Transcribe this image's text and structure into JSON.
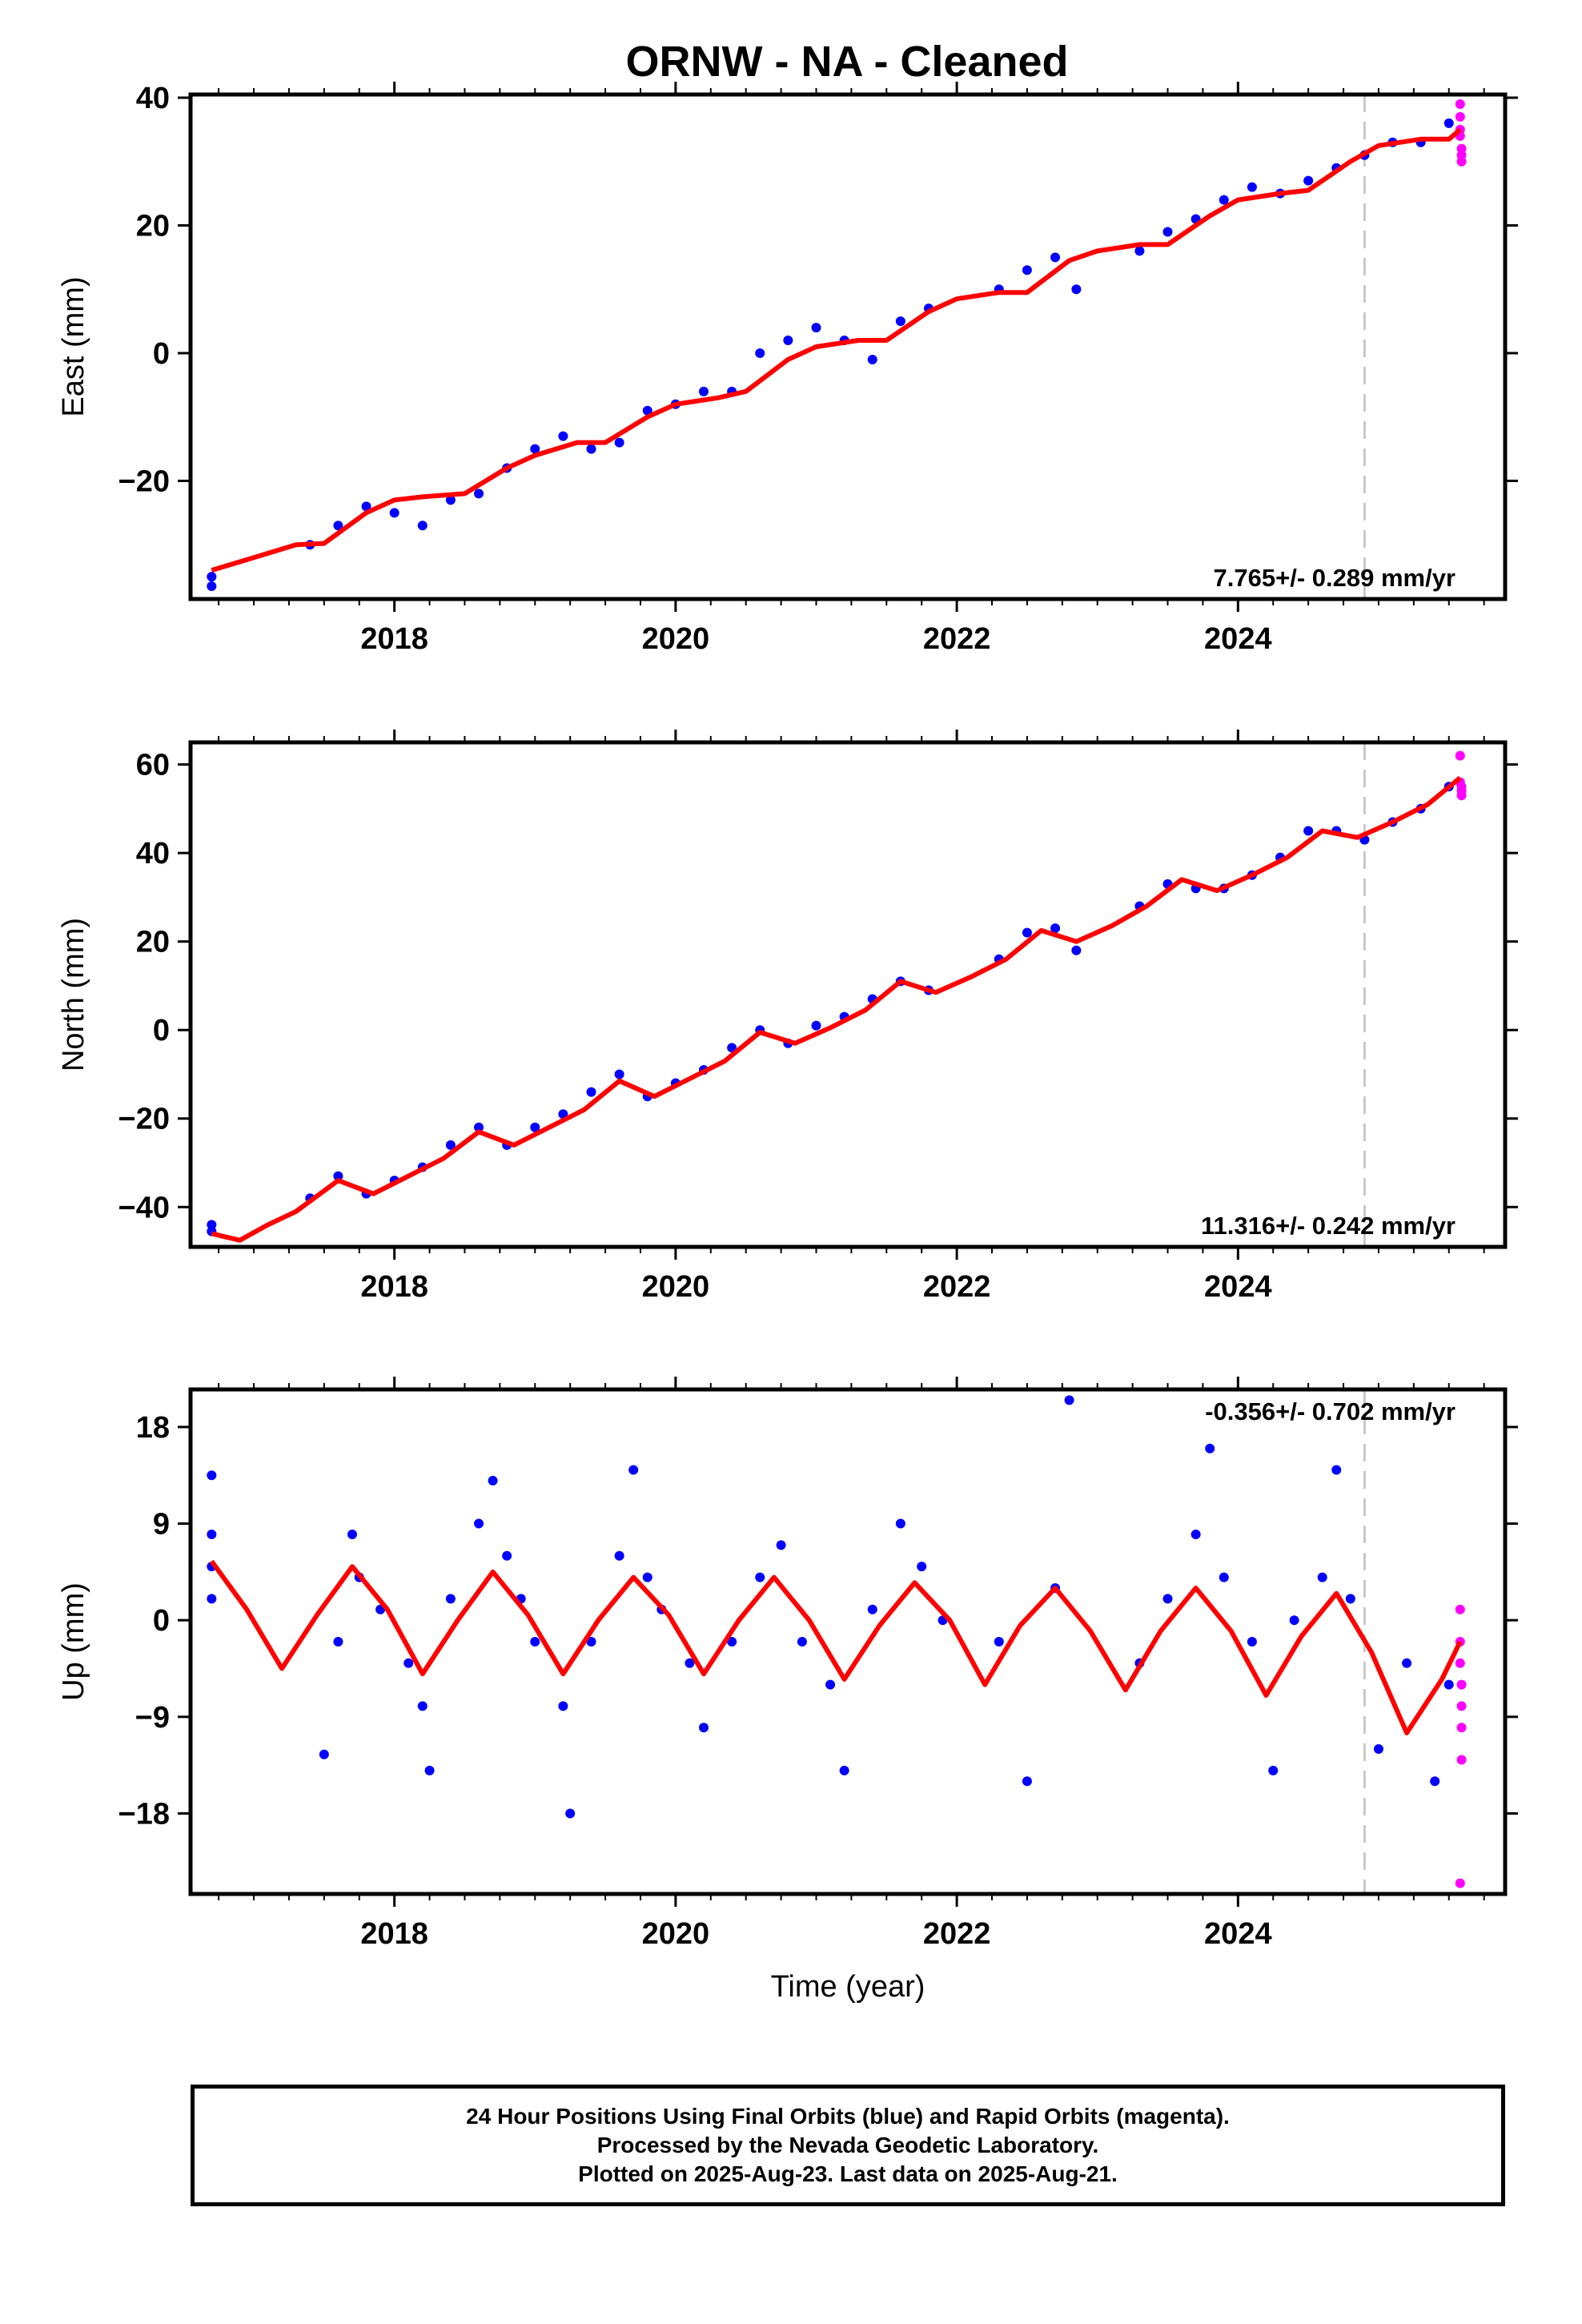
{
  "title": "ORNW  - NA - Cleaned",
  "colors": {
    "final": "#0000ff",
    "rapid": "#ff00ff",
    "model": "#ff0000",
    "cutoff": "#c8c8c8"
  },
  "caption": {
    "line1": "24 Hour Positions Using Final Orbits (blue) and Rapid Orbits (magenta).",
    "line2": "Processed by the Nevada Geodetic Laboratory.",
    "line3": "Plotted on 2025-Aug-23. Last data on 2025-Aug-21."
  },
  "chart_data": [
    {
      "type": "scatter",
      "panel": "east",
      "ylabel": "East (mm)",
      "xlabel": "",
      "xlim": [
        2016.55,
        2025.9
      ],
      "ylim": [
        -38.5,
        40.5
      ],
      "xticks": [
        2018,
        2020,
        2022,
        2024
      ],
      "yticks": [
        -20,
        0,
        20,
        40
      ],
      "rate_label": "7.765+/- 0.289 mm/yr",
      "rate_position": "bottom-right",
      "cutoff_year": 2024.9,
      "series": [
        {
          "kind": "points",
          "x": [
            2016.7,
            2016.7,
            2017.4,
            2017.6,
            2017.8,
            2018.0,
            2018.2,
            2018.4,
            2018.6,
            2018.8,
            2019.0,
            2019.2,
            2019.4,
            2019.6,
            2019.8,
            2020.0,
            2020.2,
            2020.4,
            2020.6,
            2020.8,
            2021.0,
            2021.2,
            2021.4,
            2021.6,
            2021.8,
            2022.3,
            2022.5,
            2022.7,
            2022.85,
            2023.3,
            2023.5,
            2023.7,
            2023.9,
            2024.1,
            2024.3,
            2024.5,
            2024.7,
            2024.9,
            2025.1,
            2025.3,
            2025.5
          ],
          "y": [
            -36.5,
            -35.0,
            -30.0,
            -27.0,
            -24.0,
            -25.0,
            -27.0,
            -23.0,
            -22.0,
            -18.0,
            -15.0,
            -13.0,
            -15.0,
            -14.0,
            -9.0,
            -8.0,
            -6.0,
            -6.0,
            0.0,
            2.0,
            4.0,
            2.0,
            -1.0,
            5.0,
            7.0,
            10.0,
            13.0,
            15.0,
            10.0,
            16.0,
            19.0,
            21.0,
            24.0,
            26.0,
            25.0,
            27.0,
            29.0,
            31.0,
            33.0,
            33.0,
            36.0
          ]
        },
        {
          "kind": "rapid",
          "x": [
            2025.58,
            2025.58,
            2025.58,
            2025.58,
            2025.59,
            2025.59,
            2025.59
          ],
          "y": [
            39.0,
            37.0,
            35.0,
            34.0,
            32.0,
            31.0,
            30.0
          ]
        },
        {
          "kind": "model",
          "x": [
            2016.7,
            2017.0,
            2017.3,
            2017.5,
            2017.8,
            2018.0,
            2018.2,
            2018.5,
            2018.8,
            2019.0,
            2019.3,
            2019.5,
            2019.8,
            2020.0,
            2020.3,
            2020.5,
            2020.8,
            2021.0,
            2021.3,
            2021.5,
            2021.8,
            2022.0,
            2022.3,
            2022.5,
            2022.8,
            2023.0,
            2023.3,
            2023.5,
            2023.8,
            2024.0,
            2024.3,
            2024.5,
            2024.8,
            2025.0,
            2025.3,
            2025.5,
            2025.58
          ],
          "y": [
            -34.0,
            -32.0,
            -30.0,
            -29.8,
            -25.0,
            -23.0,
            -22.5,
            -22.0,
            -18.0,
            -16.0,
            -14.0,
            -14.0,
            -10.0,
            -8.0,
            -7.0,
            -6.0,
            -1.0,
            1.0,
            2.0,
            2.0,
            6.5,
            8.5,
            9.5,
            9.5,
            14.5,
            16.0,
            17.0,
            17.0,
            21.5,
            24.0,
            25.0,
            25.5,
            30.0,
            32.5,
            33.5,
            33.5,
            35.0
          ]
        }
      ]
    },
    {
      "type": "scatter",
      "panel": "north",
      "ylabel": "North (mm)",
      "xlabel": "",
      "xlim": [
        2016.55,
        2025.9
      ],
      "ylim": [
        -49,
        65
      ],
      "xticks": [
        2018,
        2020,
        2022,
        2024
      ],
      "yticks": [
        -40,
        -20,
        0,
        20,
        40,
        60
      ],
      "rate_label": "11.316+/- 0.242 mm/yr",
      "rate_position": "bottom-right",
      "cutoff_year": 2024.9,
      "series": [
        {
          "kind": "points",
          "x": [
            2016.7,
            2016.7,
            2017.4,
            2017.6,
            2017.8,
            2018.0,
            2018.2,
            2018.4,
            2018.6,
            2018.8,
            2019.0,
            2019.2,
            2019.4,
            2019.6,
            2019.8,
            2020.0,
            2020.2,
            2020.4,
            2020.6,
            2020.8,
            2021.0,
            2021.2,
            2021.4,
            2021.6,
            2021.8,
            2022.3,
            2022.5,
            2022.7,
            2022.85,
            2023.3,
            2023.5,
            2023.7,
            2023.9,
            2024.1,
            2024.3,
            2024.5,
            2024.7,
            2024.9,
            2025.1,
            2025.3,
            2025.5
          ],
          "y": [
            -45.5,
            -44.0,
            -38.0,
            -33.0,
            -37.0,
            -34.0,
            -31.0,
            -26.0,
            -22.0,
            -26.0,
            -22.0,
            -19.0,
            -14.0,
            -10.0,
            -15.0,
            -12.0,
            -9.0,
            -4.0,
            0.0,
            -3.0,
            1.0,
            3.0,
            7.0,
            11.0,
            9.0,
            16.0,
            22.0,
            23.0,
            18.0,
            28.0,
            33.0,
            32.0,
            32.0,
            35.0,
            39.0,
            45.0,
            45.0,
            43.0,
            47.0,
            50.0,
            55.0
          ]
        },
        {
          "kind": "rapid",
          "x": [
            2025.58,
            2025.58,
            2025.59,
            2025.59,
            2025.59
          ],
          "y": [
            62.0,
            56.0,
            55.0,
            54.0,
            53.0
          ]
        },
        {
          "kind": "model",
          "x": [
            2016.7,
            2016.9,
            2017.1,
            2017.3,
            2017.6,
            2017.85,
            2018.1,
            2018.35,
            2018.6,
            2018.85,
            2019.1,
            2019.35,
            2019.6,
            2019.85,
            2020.1,
            2020.35,
            2020.6,
            2020.85,
            2021.1,
            2021.35,
            2021.6,
            2021.85,
            2022.1,
            2022.35,
            2022.6,
            2022.85,
            2023.1,
            2023.35,
            2023.6,
            2023.85,
            2024.1,
            2024.35,
            2024.6,
            2024.85,
            2025.1,
            2025.35,
            2025.58
          ],
          "y": [
            -46.0,
            -47.5,
            -44.0,
            -41.0,
            -34.0,
            -37.0,
            -33.0,
            -29.0,
            -23.0,
            -26.0,
            -22.0,
            -18.0,
            -11.5,
            -15.0,
            -11.0,
            -7.0,
            -0.5,
            -3.0,
            0.5,
            4.5,
            11.0,
            8.5,
            12.0,
            16.0,
            22.5,
            20.0,
            23.5,
            28.0,
            34.0,
            31.5,
            35.0,
            39.0,
            45.0,
            43.5,
            47.0,
            51.0,
            57.0
          ]
        }
      ]
    },
    {
      "type": "scatter",
      "panel": "up",
      "ylabel": "Up (mm)",
      "xlabel": "Time (year)",
      "xlim": [
        2016.55,
        2025.9
      ],
      "ylim": [
        -25.5,
        21.5
      ],
      "xticks": [
        2018,
        2020,
        2022,
        2024
      ],
      "yticks": [
        -18,
        -9,
        0,
        9,
        18
      ],
      "rate_label": "-0.356+/- 0.702 mm/yr",
      "rate_position": "top-right",
      "cutoff_year": 2024.9,
      "series": [
        {
          "kind": "points",
          "x": [
            2016.7,
            2016.7,
            2016.7,
            2016.7,
            2017.5,
            2017.6,
            2017.7,
            2017.75,
            2017.9,
            2018.1,
            2018.2,
            2018.25,
            2018.4,
            2018.6,
            2018.7,
            2018.8,
            2018.9,
            2019.0,
            2019.2,
            2019.25,
            2019.4,
            2019.6,
            2019.7,
            2019.8,
            2019.9,
            2020.1,
            2020.2,
            2020.4,
            2020.6,
            2020.75,
            2020.9,
            2021.1,
            2021.2,
            2021.4,
            2021.6,
            2021.75,
            2021.9,
            2022.3,
            2022.5,
            2022.7,
            2022.8,
            2023.3,
            2023.5,
            2023.7,
            2023.8,
            2023.9,
            2024.1,
            2024.25,
            2024.4,
            2024.6,
            2024.7,
            2024.8,
            2025.0,
            2025.2,
            2025.4,
            2025.5
          ],
          "y": [
            13.5,
            8.0,
            5.0,
            2.0,
            -12.5,
            -2.0,
            8.0,
            4.0,
            1.0,
            -4.0,
            -8.0,
            -14.0,
            2.0,
            9.0,
            13.0,
            6.0,
            2.0,
            -2.0,
            -8.0,
            -18.0,
            -2.0,
            6.0,
            14.0,
            4.0,
            1.0,
            -4.0,
            -10.0,
            -2.0,
            4.0,
            7.0,
            -2.0,
            -6.0,
            -14.0,
            1.0,
            9.0,
            5.0,
            0.0,
            -2.0,
            -15.0,
            3.0,
            20.5,
            -4.0,
            2.0,
            8.0,
            16.0,
            4.0,
            -2.0,
            -14.0,
            0.0,
            4.0,
            14.0,
            2.0,
            -12.0,
            -4.0,
            -15.0,
            -6.0
          ]
        },
        {
          "kind": "rapid",
          "x": [
            2025.58,
            2025.58,
            2025.58,
            2025.59,
            2025.59,
            2025.59,
            2025.59,
            2025.58
          ],
          "y": [
            1.0,
            -2.0,
            -4.0,
            -6.0,
            -8.0,
            -10.0,
            -13.0,
            -24.5
          ]
        },
        {
          "kind": "model",
          "x": [
            2016.7,
            2016.95,
            2017.2,
            2017.45,
            2017.7,
            2017.95,
            2018.2,
            2018.45,
            2018.7,
            2018.95,
            2019.2,
            2019.45,
            2019.7,
            2019.95,
            2020.2,
            2020.45,
            2020.7,
            2020.95,
            2021.2,
            2021.45,
            2021.7,
            2021.95,
            2022.2,
            2022.45,
            2022.7,
            2022.95,
            2023.2,
            2023.45,
            2023.7,
            2023.95,
            2024.2,
            2024.45,
            2024.7,
            2024.95,
            2025.2,
            2025.45,
            2025.58
          ],
          "y": [
            5.5,
            1.0,
            -4.5,
            0.5,
            5.0,
            1.0,
            -5.0,
            0.0,
            4.5,
            0.5,
            -5.0,
            0.0,
            4.0,
            0.5,
            -5.0,
            0.0,
            4.0,
            0.0,
            -5.5,
            -0.5,
            3.5,
            0.0,
            -6.0,
            -0.5,
            3.0,
            -1.0,
            -6.5,
            -1.0,
            3.0,
            -1.0,
            -7.0,
            -1.5,
            2.5,
            -3.0,
            -10.5,
            -5.5,
            -2.0
          ]
        }
      ]
    }
  ]
}
